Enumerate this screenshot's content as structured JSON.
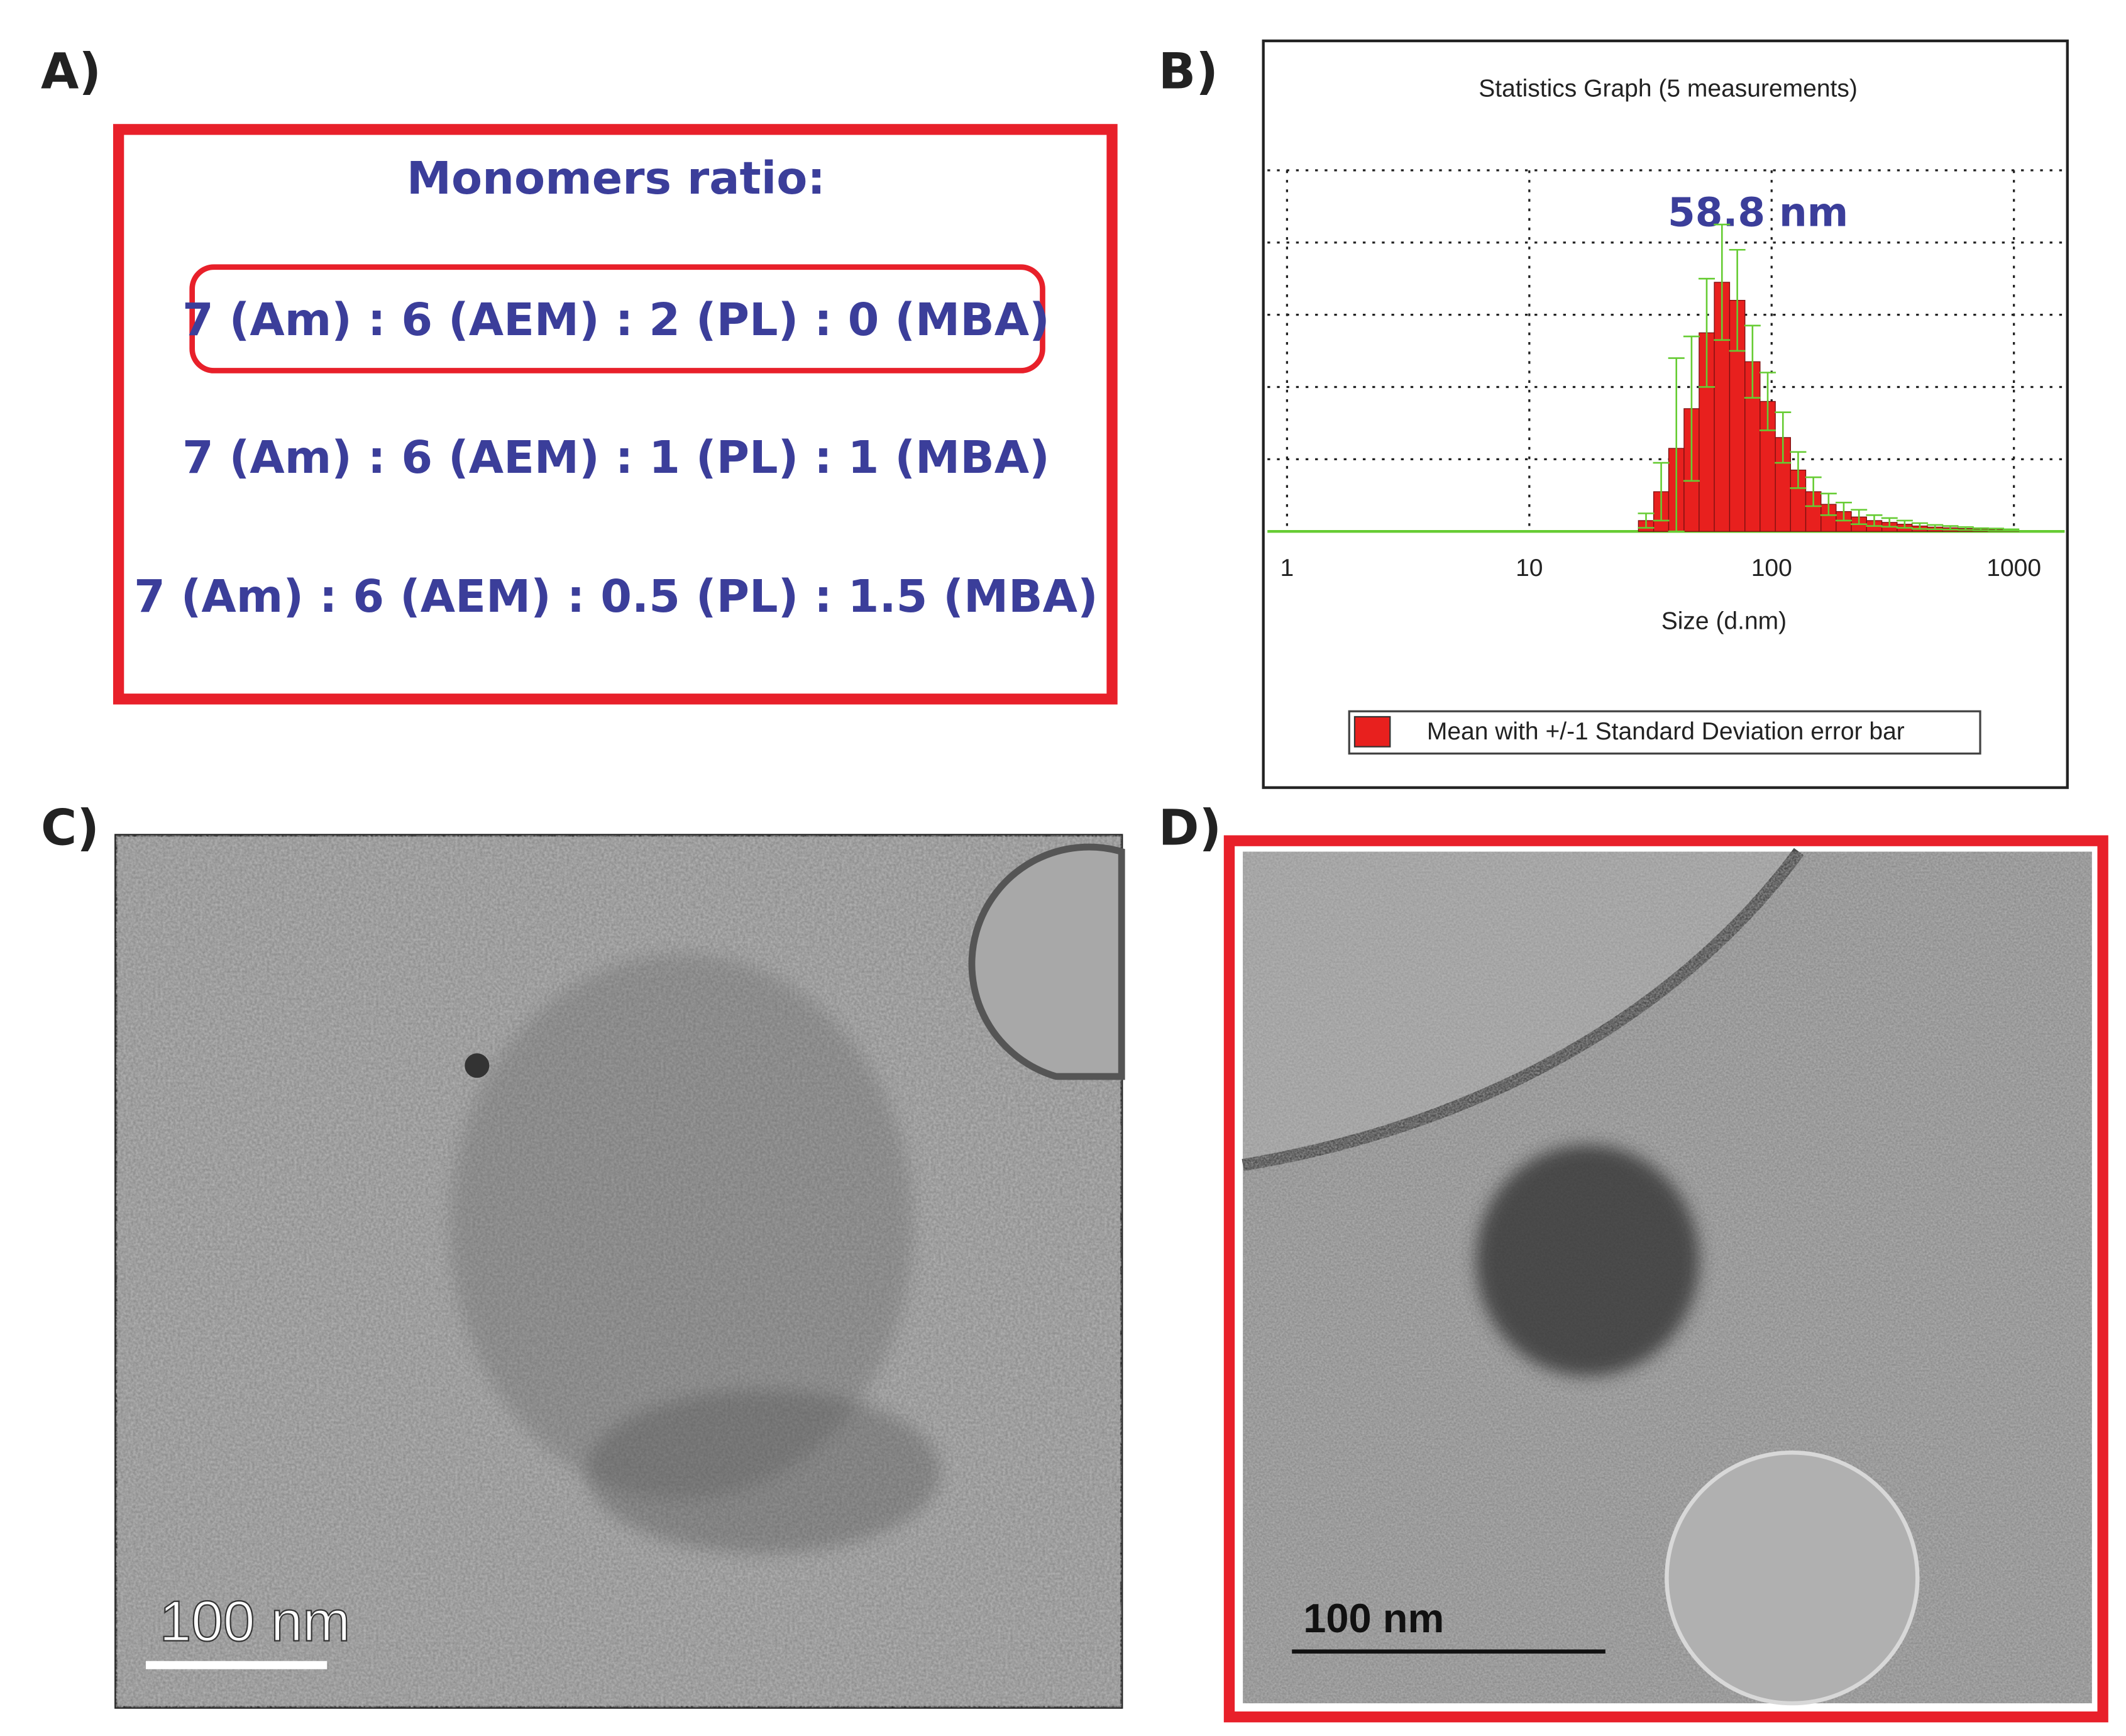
{
  "panel_labels": [
    "A)",
    "B)",
    "C)",
    "D)"
  ],
  "panel_a": {
    "title": "Monomers ratio:",
    "ratios": [
      "7 (Am) : 6 (AEM) : 2 (PL) : 0 (MBA)",
      "7 (Am) : 6 (AEM) : 1 (PL) : 1 (MBA)",
      "7 (Am) : 6 (AEM) : 0.5 (PL) : 1.5 (MBA)"
    ]
  },
  "chart_data": {
    "type": "histogram",
    "title": "Statistics Graph (5 measurements)",
    "x_label": "Size (d.nm)",
    "annotation": "58.8 nm",
    "legend": "Mean with +/-1 Standard Deviation error bar",
    "xscale": "log",
    "xlim": [
      0.83,
      1620
    ],
    "xticks": [
      1,
      10,
      100,
      1000
    ],
    "ylim": [
      0,
      11
    ],
    "ygrid": [
      2,
      4,
      6,
      8,
      10
    ],
    "grid": true,
    "color": "#e8201e",
    "error_color": "#66cc33",
    "bins": [
      28.2,
      32.6,
      37.6,
      43.5,
      50.2,
      58.0,
      67.1,
      77.6,
      89.6,
      103.6,
      119.7,
      138.3,
      159.9,
      184.6,
      213.3,
      246.6,
      285.1,
      329.6,
      380.2,
      439.5,
      508.2,
      587.5,
      679.2,
      783.4,
      905.8,
      1047
    ],
    "values": [
      0.3,
      1.1,
      2.3,
      3.4,
      5.5,
      6.9,
      6.4,
      4.7,
      3.6,
      2.6,
      1.7,
      1.1,
      0.75,
      0.55,
      0.4,
      0.3,
      0.25,
      0.2,
      0.15,
      0.12,
      0.1,
      0.08,
      0.06,
      0.05,
      0.04
    ],
    "errors": [
      0.2,
      0.8,
      2.5,
      2.0,
      1.5,
      1.6,
      1.4,
      1.0,
      0.8,
      0.7,
      0.5,
      0.4,
      0.3,
      0.25,
      0.2,
      0.15,
      0.12,
      0.1,
      0.08,
      0.06,
      0.05,
      0.04,
      0.03,
      0.03,
      0.02
    ]
  },
  "panel_c": {
    "scale_bar": "100 nm"
  },
  "panel_d": {
    "scale_bar": "100 nm"
  }
}
